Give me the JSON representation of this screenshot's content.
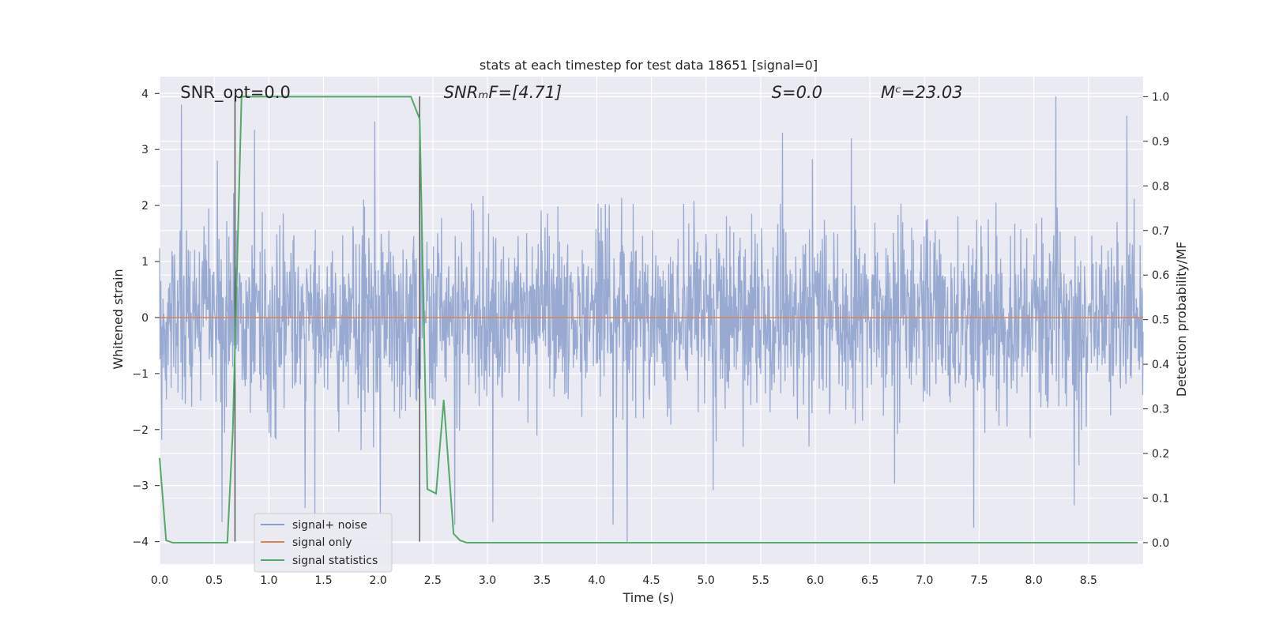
{
  "chart_data": {
    "type": "line",
    "title": "stats at each timestep for test data 18651 [signal=0]",
    "xlabel": "Time (s)",
    "ylabel": "Whitened strain",
    "ylabel_right": "Detection probability/MF",
    "xlim": [
      0.0,
      9.0
    ],
    "ylim": [
      -4.4,
      4.3
    ],
    "ylim_right": [
      -0.048,
      1.045
    ],
    "x_ticks": [
      0.0,
      0.5,
      1.0,
      1.5,
      2.0,
      2.5,
      3.0,
      3.5,
      4.0,
      4.5,
      5.0,
      5.5,
      6.0,
      6.5,
      7.0,
      7.5,
      8.0,
      8.5
    ],
    "x_tick_labels": [
      "0.0",
      "0.5",
      "1.0",
      "1.5",
      "2.0",
      "2.5",
      "3.0",
      "3.5",
      "4.0",
      "4.5",
      "5.0",
      "5.5",
      "6.0",
      "6.5",
      "7.0",
      "7.5",
      "8.0",
      "8.5"
    ],
    "y_ticks": [
      4,
      3,
      2,
      1,
      0,
      -1,
      -2,
      -3,
      -4
    ],
    "y_tick_labels": [
      "4",
      "3",
      "2",
      "1",
      "0",
      "−1",
      "−2",
      "−3",
      "−4"
    ],
    "y_ticks_right": [
      1.0,
      0.9,
      0.8,
      0.7,
      0.6,
      0.5,
      0.4,
      0.3,
      0.2,
      0.1,
      0.0
    ],
    "y_tick_labels_right": [
      "1.0",
      "0.9",
      "0.8",
      "0.7",
      "0.6",
      "0.5",
      "0.4",
      "0.3",
      "0.2",
      "0.1",
      "0.0"
    ],
    "grid": true,
    "legend_position": "lower-left",
    "annotations": [
      {
        "text": "SNR_opt=0.0",
        "x": 0.19
      },
      {
        "text": "SNRₘF=[4.71]",
        "x": 2.6
      },
      {
        "text": "S=0.0",
        "x": 5.6
      },
      {
        "text": "Mᶜ=23.03",
        "x": 6.6
      }
    ],
    "vlines": [
      0.69,
      2.38
    ],
    "series": [
      {
        "name": "signal+ noise",
        "axis": "left",
        "color": "#8a9fcc",
        "noise_std": 0.8,
        "x_range": [
          0.0,
          9.0
        ],
        "spikes": [
          {
            "x": 0.2,
            "y": 3.8
          },
          {
            "x": 0.53,
            "y": 2.8
          },
          {
            "x": 0.57,
            "y": -3.65
          },
          {
            "x": 0.87,
            "y": 3.35
          },
          {
            "x": 1.33,
            "y": -3.4
          },
          {
            "x": 1.42,
            "y": -3.6
          },
          {
            "x": 1.97,
            "y": 3.5
          },
          {
            "x": 2.02,
            "y": -3.5
          },
          {
            "x": 2.7,
            "y": -3.7
          },
          {
            "x": 3.05,
            "y": -3.65
          },
          {
            "x": 4.15,
            "y": -3.7
          },
          {
            "x": 4.28,
            "y": -4.0
          },
          {
            "x": 5.7,
            "y": 3.3
          },
          {
            "x": 6.33,
            "y": 3.2
          },
          {
            "x": 7.45,
            "y": -3.75
          },
          {
            "x": 8.2,
            "y": 3.95
          },
          {
            "x": 8.37,
            "y": -3.35
          },
          {
            "x": 8.85,
            "y": 3.6
          }
        ]
      },
      {
        "name": "signal only",
        "axis": "left",
        "color": "#dd8452",
        "x": [
          0.0,
          9.0
        ],
        "y": [
          0.0,
          0.0
        ]
      },
      {
        "name": "signal statistics",
        "axis": "right",
        "color": "#55a868",
        "x": [
          0.0,
          0.06,
          0.12,
          0.62,
          0.67,
          0.75,
          2.3,
          2.38,
          2.45,
          2.53,
          2.6,
          2.69,
          2.75,
          2.81,
          8.95
        ],
        "y": [
          0.19,
          0.005,
          0.0,
          0.0,
          0.25,
          1.0,
          1.0,
          0.95,
          0.12,
          0.11,
          0.32,
          0.02,
          0.005,
          0.0,
          0.0
        ]
      }
    ]
  }
}
